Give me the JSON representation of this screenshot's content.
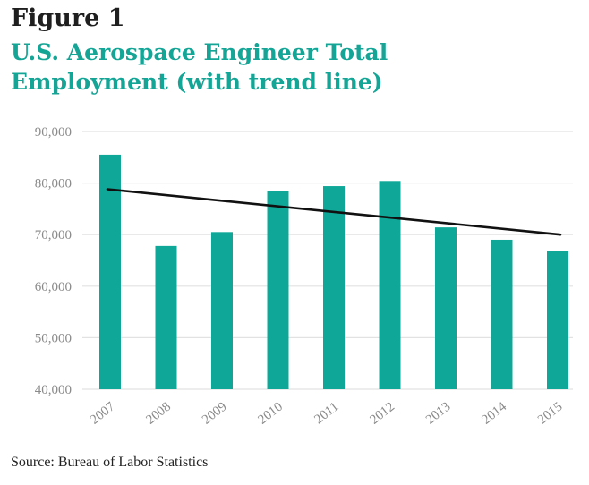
{
  "header": {
    "figure_label": "Figure 1",
    "title": "U.S. Aerospace Engineer Total Employment (with trend line)"
  },
  "footer": {
    "source": "Source: Bureau of Labor Statistics"
  },
  "colors": {
    "bar": "#0fa898",
    "trend_line": "#111111",
    "title": "#14a596",
    "gridline": "#e2e2e2",
    "tick_label": "#8a8a8a"
  },
  "chart_data": {
    "type": "bar",
    "title": "U.S. Aerospace Engineer Total Employment (with trend line)",
    "xlabel": "",
    "ylabel": "",
    "categories": [
      "2007",
      "2008",
      "2009",
      "2010",
      "2011",
      "2012",
      "2013",
      "2014",
      "2015"
    ],
    "series": [
      {
        "values": [
          85500,
          67800,
          70500,
          78500,
          79400,
          80400,
          71400,
          69000,
          66800
        ]
      }
    ],
    "trend_line": {
      "start": {
        "x": "2007",
        "y": 78800
      },
      "end": {
        "x": "2015",
        "y": 70000
      }
    },
    "ylim": [
      40000,
      90000
    ],
    "yticks": [
      40000,
      50000,
      60000,
      70000,
      80000,
      90000
    ],
    "ytick_labels": [
      "40,000",
      "50,000",
      "60,000",
      "70,000",
      "80,000",
      "90,000"
    ],
    "grid": true,
    "legend": "none"
  }
}
